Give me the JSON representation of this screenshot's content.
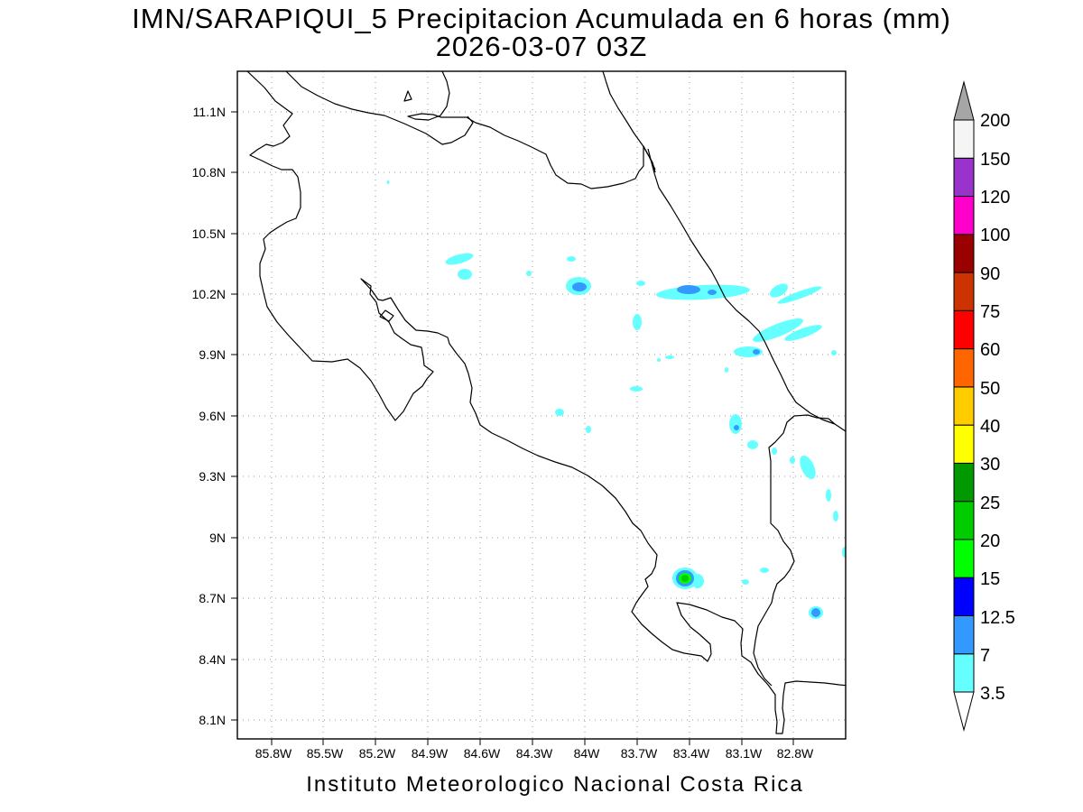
{
  "title": {
    "line1": "IMN/SARAPIQUI_5 Precipitacion Acumulada en 6 horas (mm)",
    "line2": "2026-03-07 03Z"
  },
  "footer": "Instituto Meteorologico Nacional Costa Rica",
  "map": {
    "lat_ticks": [
      "11.1N",
      "10.8N",
      "10.5N",
      "10.2N",
      "9.9N",
      "9.6N",
      "9.3N",
      "9N",
      "8.7N",
      "8.4N",
      "8.1N"
    ],
    "lon_ticks": [
      "85.8W",
      "85.5W",
      "85.2W",
      "84.9W",
      "84.6W",
      "84.3W",
      "84W",
      "83.7W",
      "83.4W",
      "83.1W",
      "82.8W"
    ],
    "grid": "dotted",
    "coastline_color": "#000000"
  },
  "colorbar": {
    "levels": [
      "3.5",
      "7",
      "12.5",
      "15",
      "20",
      "25",
      "30",
      "40",
      "50",
      "60",
      "75",
      "90",
      "100",
      "120",
      "150",
      "200"
    ],
    "colors": [
      "#66ffff",
      "#3399ff",
      "#0000ff",
      "#00ff00",
      "#00cc00",
      "#009900",
      "#ffff00",
      "#ffcc00",
      "#ff6600",
      "#ff0000",
      "#cc3300",
      "#990000",
      "#ff00cc",
      "#9933cc",
      "#f5f5f5",
      "#a6a6a6"
    ]
  }
}
